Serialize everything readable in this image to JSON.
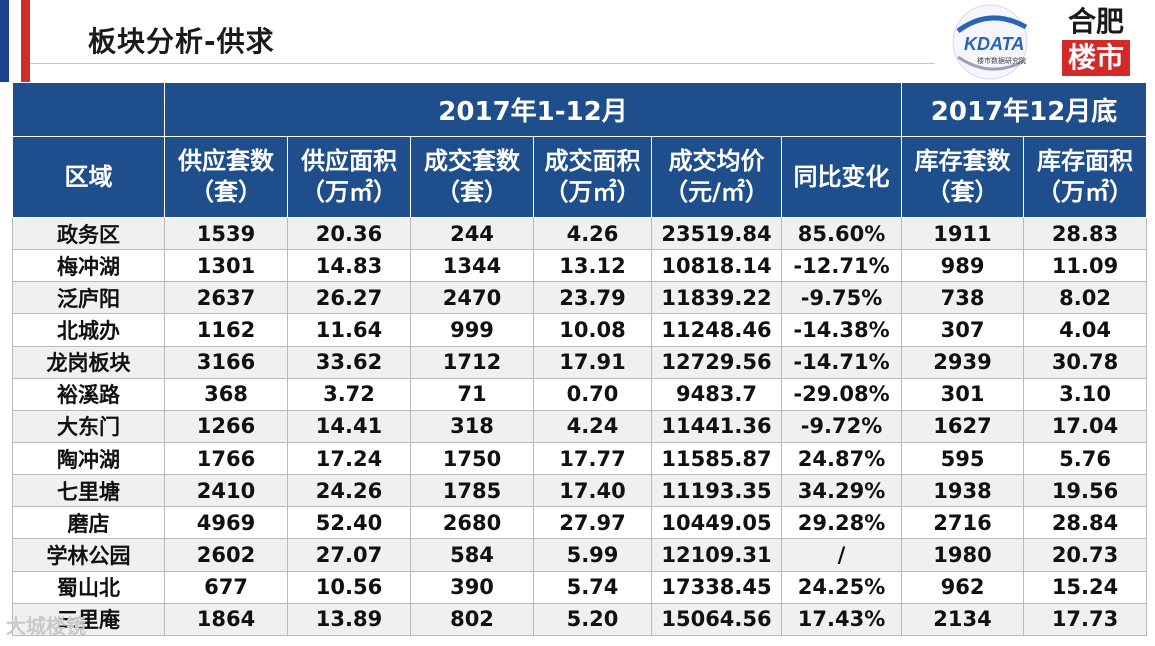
{
  "title": "板块分析-供求",
  "logos": {
    "kdata_name": "KDATA",
    "kdata_sub": "楼市数据研究院",
    "hefei_top": "合肥",
    "hefei_bottom": "楼市"
  },
  "header": {
    "period_main": "2017年1-12月",
    "period_stock": "2017年12月底",
    "columns": [
      {
        "line1": "区域",
        "line2": ""
      },
      {
        "line1": "供应套数",
        "line2": "（套）"
      },
      {
        "line1": "供应面积",
        "line2": "（万㎡）"
      },
      {
        "line1": "成交套数",
        "line2": "（套）"
      },
      {
        "line1": "成交面积",
        "line2": "（万㎡）"
      },
      {
        "line1": "成交均价",
        "line2": "（元/㎡）"
      },
      {
        "line1": "同比变化",
        "line2": ""
      },
      {
        "line1": "库存套数",
        "line2": "（套）"
      },
      {
        "line1": "库存面积",
        "line2": "（万㎡）"
      }
    ]
  },
  "rows": [
    {
      "region": "政务区",
      "supply_units": "1539",
      "supply_area": "20.36",
      "deal_units": "244",
      "deal_area": "4.26",
      "avg_price": "23519.84",
      "yoy": "85.60%",
      "trend": "pos",
      "stock_units": "1911",
      "stock_area": "28.83"
    },
    {
      "region": "梅冲湖",
      "supply_units": "1301",
      "supply_area": "14.83",
      "deal_units": "1344",
      "deal_area": "13.12",
      "avg_price": "10818.14",
      "yoy": "-12.71%",
      "trend": "neg",
      "stock_units": "989",
      "stock_area": "11.09"
    },
    {
      "region": "泛庐阳",
      "supply_units": "2637",
      "supply_area": "26.27",
      "deal_units": "2470",
      "deal_area": "23.79",
      "avg_price": "11839.22",
      "yoy": "-9.75%",
      "trend": "neg",
      "stock_units": "738",
      "stock_area": "8.02"
    },
    {
      "region": "北城办",
      "supply_units": "1162",
      "supply_area": "11.64",
      "deal_units": "999",
      "deal_area": "10.08",
      "avg_price": "11248.46",
      "yoy": "-14.38%",
      "trend": "neg",
      "stock_units": "307",
      "stock_area": "4.04"
    },
    {
      "region": "龙岗板块",
      "supply_units": "3166",
      "supply_area": "33.62",
      "deal_units": "1712",
      "deal_area": "17.91",
      "avg_price": "12729.56",
      "yoy": "-14.71%",
      "trend": "neg",
      "stock_units": "2939",
      "stock_area": "30.78"
    },
    {
      "region": "裕溪路",
      "supply_units": "368",
      "supply_area": "3.72",
      "deal_units": "71",
      "deal_area": "0.70",
      "avg_price": "9483.7",
      "yoy": "-29.08%",
      "trend": "neg",
      "stock_units": "301",
      "stock_area": "3.10"
    },
    {
      "region": "大东门",
      "supply_units": "1266",
      "supply_area": "14.41",
      "deal_units": "318",
      "deal_area": "4.24",
      "avg_price": "11441.36",
      "yoy": "-9.72%",
      "trend": "neg",
      "stock_units": "1627",
      "stock_area": "17.04"
    },
    {
      "region": "陶冲湖",
      "supply_units": "1766",
      "supply_area": "17.24",
      "deal_units": "1750",
      "deal_area": "17.77",
      "avg_price": "11585.87",
      "yoy": "24.87%",
      "trend": "pos",
      "stock_units": "595",
      "stock_area": "5.76"
    },
    {
      "region": "七里塘",
      "supply_units": "2410",
      "supply_area": "24.26",
      "deal_units": "1785",
      "deal_area": "17.40",
      "avg_price": "11193.35",
      "yoy": "34.29%",
      "trend": "pos",
      "stock_units": "1938",
      "stock_area": "19.56"
    },
    {
      "region": "磨店",
      "supply_units": "4969",
      "supply_area": "52.40",
      "deal_units": "2680",
      "deal_area": "27.97",
      "avg_price": "10449.05",
      "yoy": "29.28%",
      "trend": "pos",
      "stock_units": "2716",
      "stock_area": "28.84"
    },
    {
      "region": "学林公园",
      "supply_units": "2602",
      "supply_area": "27.07",
      "deal_units": "584",
      "deal_area": "5.99",
      "avg_price": "12109.31",
      "yoy": "/",
      "trend": "slash",
      "stock_units": "1980",
      "stock_area": "20.73"
    },
    {
      "region": "蜀山北",
      "supply_units": "677",
      "supply_area": "10.56",
      "deal_units": "390",
      "deal_area": "5.74",
      "avg_price": "17338.45",
      "yoy": "24.25%",
      "trend": "pos",
      "stock_units": "962",
      "stock_area": "15.24"
    },
    {
      "region": "三里庵",
      "supply_units": "1864",
      "supply_area": "13.89",
      "deal_units": "802",
      "deal_area": "5.20",
      "avg_price": "15064.56",
      "yoy": "17.43%",
      "trend": "pos",
      "stock_units": "2134",
      "stock_area": "17.73"
    }
  ],
  "colors": {
    "header_bg": "#1f4e8c",
    "positive": "#c0282a",
    "negative": "#1aa84f"
  },
  "watermark": "大城楼镜"
}
